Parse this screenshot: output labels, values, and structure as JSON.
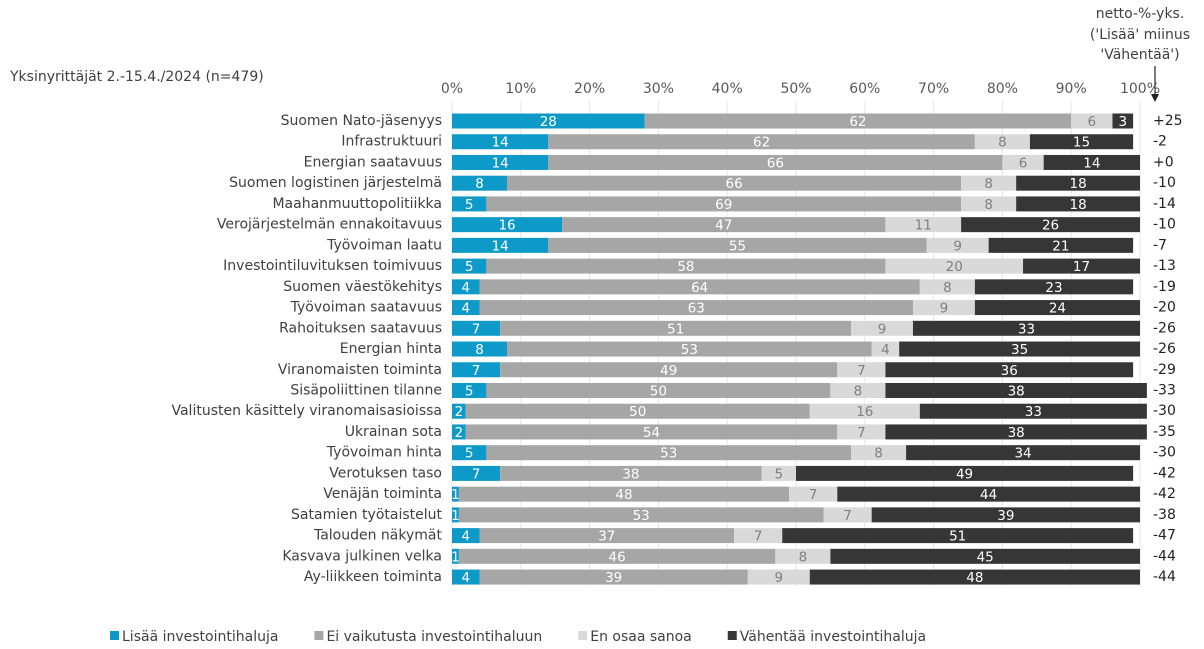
{
  "chart_data": {
    "type": "stacked_barh",
    "title": "Yksinyrittäjät 2.-15.4./2024 (n=479)",
    "net_title": [
      "netto-%-yks.",
      "('Lisää' miinus",
      "'Vähentää')"
    ],
    "categories": [
      "Suomen Nato-jäsenyys",
      "Infrastruktuuri",
      "Energian saatavuus",
      "Suomen logistinen järjestelmä",
      "Maahanmuuttopolitiikka",
      "Verojärjestelmän ennakoitavuus",
      "Työvoiman laatu",
      "Investointiluvituksen toimivuus",
      "Suomen väestökehitys",
      "Työvoiman saatavuus",
      "Rahoituksen saatavuus",
      "Energian hinta",
      "Viranomaisten toiminta",
      "Sisäpoliittinen tilanne",
      "Valitusten käsittely viranomaisasioissa",
      "Ukrainan sota",
      "Työvoiman hinta",
      "Verotuksen taso",
      "Venäjän toiminta",
      "Satamien työtaistelut",
      "Talouden näkymät",
      "Kasvava julkinen velka",
      "Ay-liikkeen toiminta"
    ],
    "series": [
      {
        "name": "Lisää investointihaluja",
        "color": "#0e9ac8",
        "label_color": "#ffffff",
        "values": [
          28,
          14,
          14,
          8,
          5,
          16,
          14,
          5,
          4,
          4,
          7,
          8,
          7,
          5,
          2,
          2,
          5,
          7,
          1,
          1,
          4,
          1,
          4
        ]
      },
      {
        "name": "Ei vaikutusta investointihaluun",
        "color": "#a6a6a6",
        "label_color": "#ffffff",
        "values": [
          62,
          62,
          66,
          66,
          69,
          47,
          55,
          58,
          64,
          63,
          51,
          53,
          49,
          50,
          50,
          54,
          53,
          38,
          48,
          53,
          37,
          46,
          39
        ]
      },
      {
        "name": "En osaa sanoa",
        "color": "#d9d9d9",
        "label_color": "#808080",
        "values": [
          6,
          8,
          6,
          8,
          8,
          11,
          9,
          20,
          8,
          9,
          9,
          4,
          7,
          8,
          16,
          7,
          8,
          5,
          7,
          7,
          7,
          8,
          9
        ]
      },
      {
        "name": "Vähentää investointihaluja",
        "color": "#363636",
        "label_color": "#ffffff",
        "values": [
          3,
          15,
          14,
          18,
          18,
          26,
          21,
          17,
          23,
          24,
          33,
          35,
          36,
          38,
          33,
          38,
          34,
          49,
          44,
          39,
          51,
          45,
          48
        ]
      }
    ],
    "net": {
      "values": [
        25,
        -2,
        0,
        -10,
        -14,
        -10,
        -7,
        -13,
        -19,
        -20,
        -26,
        -26,
        -29,
        -33,
        -30,
        -35,
        -30,
        -42,
        -42,
        -38,
        -47,
        -44,
        -44
      ],
      "value_labels": [
        "+25",
        "-2",
        "+0",
        "-10",
        "-14",
        "-10",
        "-7",
        "-13",
        "-19",
        "-20",
        "-26",
        "-26",
        "-29",
        "-33",
        "-30",
        "-35",
        "-30",
        "-42",
        "-42",
        "-38",
        "-47",
        "-44",
        "-44"
      ]
    },
    "xlim": [
      0,
      100
    ],
    "xticks": [
      {
        "value": 0,
        "label": "0%"
      },
      {
        "value": 10,
        "label": "10%"
      },
      {
        "value": 20,
        "label": "20%"
      },
      {
        "value": 30,
        "label": "30%"
      },
      {
        "value": 40,
        "label": "40%"
      },
      {
        "value": 50,
        "label": "50%"
      },
      {
        "value": 60,
        "label": "60%"
      },
      {
        "value": 70,
        "label": "70%"
      },
      {
        "value": 80,
        "label": "80%"
      },
      {
        "value": 90,
        "label": "90%"
      },
      {
        "value": 100,
        "label": "100%"
      }
    ],
    "grid": true
  }
}
